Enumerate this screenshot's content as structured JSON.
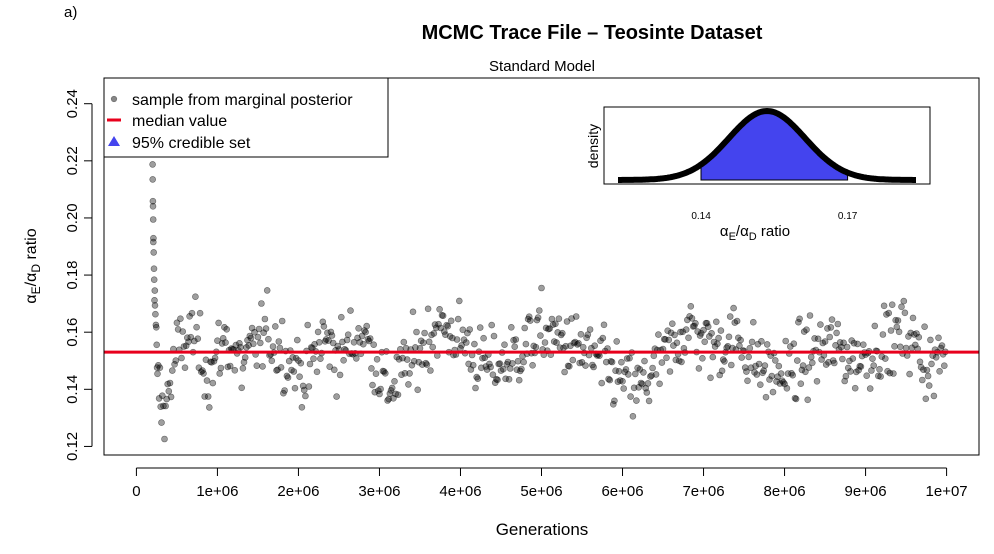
{
  "panel_label": "a)",
  "chart_data": {
    "type": "scatter",
    "title": "MCMC Trace File – Teosinte Dataset",
    "subtitle": "Standard Model",
    "xlabel": "Generations",
    "ylabel": "αE/αD ratio",
    "xlim": [
      -400000,
      10400000
    ],
    "ylim": [
      0.117,
      0.249
    ],
    "x_ticks": [
      0,
      1000000,
      2000000,
      3000000,
      4000000,
      5000000,
      6000000,
      7000000,
      8000000,
      9000000,
      10000000
    ],
    "x_tick_labels": [
      "0",
      "1e+06",
      "2e+06",
      "3e+06",
      "4e+06",
      "5e+06",
      "6e+06",
      "7e+06",
      "8e+06",
      "9e+06",
      "1e+07"
    ],
    "y_ticks": [
      0.12,
      0.14,
      0.16,
      0.18,
      0.2,
      0.22,
      0.24
    ],
    "y_tick_labels": [
      "0.12",
      "0.14",
      "0.16",
      "0.18",
      "0.20",
      "0.22",
      "0.24"
    ],
    "median": 0.153,
    "legend": {
      "position": "top-left",
      "items": [
        {
          "label": "sample from marginal posterior",
          "symbol": "point",
          "color": "#888888"
        },
        {
          "label": "median value",
          "symbol": "line",
          "color": "#e8001c"
        },
        {
          "label": "95% credible set",
          "symbol": "triangle",
          "color": "#4444ee"
        }
      ]
    },
    "trace_segments": [
      {
        "x": 200000,
        "y": 0.215
      },
      {
        "x": 210000,
        "y": 0.19
      },
      {
        "x": 230000,
        "y": 0.17
      },
      {
        "x": 260000,
        "y": 0.145
      },
      {
        "x": 320000,
        "y": 0.132
      },
      {
        "x": 400000,
        "y": 0.14
      },
      {
        "x": 500000,
        "y": 0.153
      },
      {
        "x": 700000,
        "y": 0.16
      },
      {
        "x": 900000,
        "y": 0.145
      },
      {
        "x": 1100000,
        "y": 0.158
      },
      {
        "x": 1300000,
        "y": 0.148
      },
      {
        "x": 1600000,
        "y": 0.16
      },
      {
        "x": 1900000,
        "y": 0.15
      },
      {
        "x": 2100000,
        "y": 0.145
      },
      {
        "x": 2300000,
        "y": 0.158
      },
      {
        "x": 2500000,
        "y": 0.152
      },
      {
        "x": 2800000,
        "y": 0.16
      },
      {
        "x": 3100000,
        "y": 0.14
      },
      {
        "x": 3400000,
        "y": 0.15
      },
      {
        "x": 3700000,
        "y": 0.162
      },
      {
        "x": 4000000,
        "y": 0.158
      },
      {
        "x": 4300000,
        "y": 0.148
      },
      {
        "x": 4600000,
        "y": 0.15
      },
      {
        "x": 5000000,
        "y": 0.16
      },
      {
        "x": 5300000,
        "y": 0.156
      },
      {
        "x": 5600000,
        "y": 0.152
      },
      {
        "x": 5900000,
        "y": 0.145
      },
      {
        "x": 6200000,
        "y": 0.14
      },
      {
        "x": 6500000,
        "y": 0.15
      },
      {
        "x": 6800000,
        "y": 0.162
      },
      {
        "x": 7100000,
        "y": 0.155
      },
      {
        "x": 7400000,
        "y": 0.158
      },
      {
        "x": 7700000,
        "y": 0.148
      },
      {
        "x": 8000000,
        "y": 0.145
      },
      {
        "x": 8300000,
        "y": 0.152
      },
      {
        "x": 8600000,
        "y": 0.155
      },
      {
        "x": 8900000,
        "y": 0.15
      },
      {
        "x": 9200000,
        "y": 0.156
      },
      {
        "x": 9500000,
        "y": 0.16
      },
      {
        "x": 9800000,
        "y": 0.148
      },
      {
        "x": 10000000,
        "y": 0.152
      }
    ],
    "inset": {
      "type": "density",
      "ylabel": "density",
      "xlabel": "αE/αD ratio",
      "mean": 0.1535,
      "sd": 0.0078,
      "xlim": [
        0.123,
        0.184
      ],
      "credible_interval": [
        0.14,
        0.17
      ],
      "tick_labels": [
        "0.14",
        "0.17"
      ],
      "fill_color": "#4444ee"
    }
  }
}
